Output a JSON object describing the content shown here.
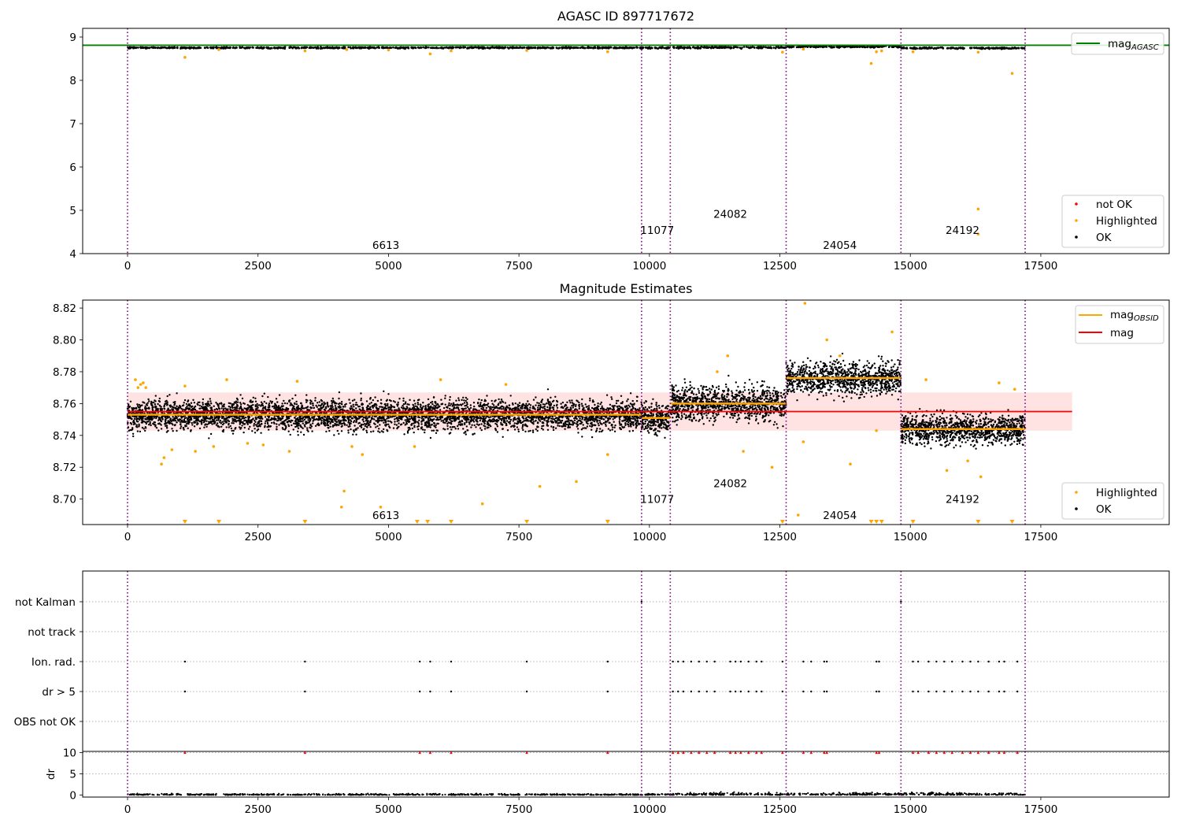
{
  "chart_data": [
    {
      "type": "scatter",
      "title": "AGASC ID 897717672",
      "xlabel": "",
      "ylabel": "",
      "xlim": [
        -860,
        19960
      ],
      "ylim": [
        4,
        9.2
      ],
      "x_ticks": [
        0,
        2500,
        5000,
        7500,
        10000,
        12500,
        15000,
        17500
      ],
      "x_tick_labels": [
        "0",
        "2500",
        "5000",
        "7500",
        "10000",
        "12500",
        "15000",
        "17500"
      ],
      "y_ticks": [
        4,
        5,
        6,
        7,
        8,
        9
      ],
      "y_tick_labels": [
        "4",
        "5",
        "6",
        "7",
        "8",
        "9"
      ],
      "hlines": [
        {
          "name": "mag_AGASC",
          "y": 8.81,
          "color": "#008000"
        }
      ],
      "obsid_boundaries": [
        0,
        9850,
        10400,
        12620,
        14820,
        17200
      ],
      "annotations": [
        {
          "text": "6613",
          "x": 4950,
          "y": 4.2
        },
        {
          "text": "11077",
          "x": 10150,
          "y": 4.55
        },
        {
          "text": "24082",
          "x": 11550,
          "y": 4.92
        },
        {
          "text": "24054",
          "x": 13650,
          "y": 4.2
        },
        {
          "text": "24192",
          "x": 16000,
          "y": 4.55
        }
      ],
      "segments": [
        {
          "x0": 0,
          "x1": 9850,
          "center": 8.753,
          "spread": 0.012
        },
        {
          "x0": 9850,
          "x1": 10400,
          "center": 8.751,
          "spread": 0.012
        },
        {
          "x0": 10400,
          "x1": 12620,
          "center": 8.76,
          "spread": 0.014
        },
        {
          "x0": 12620,
          "x1": 14820,
          "center": 8.776,
          "spread": 0.013
        },
        {
          "x0": 14820,
          "x1": 17200,
          "center": 8.744,
          "spread": 0.012
        }
      ],
      "highlighted": [
        [
          1100,
          8.53
        ],
        [
          1750,
          8.71
        ],
        [
          3400,
          8.68
        ],
        [
          4200,
          8.71
        ],
        [
          5000,
          8.7
        ],
        [
          5800,
          8.61
        ],
        [
          6200,
          8.68
        ],
        [
          7650,
          8.69
        ],
        [
          9200,
          8.66
        ],
        [
          12550,
          8.65
        ],
        [
          12950,
          8.72
        ],
        [
          14250,
          8.39
        ],
        [
          14350,
          8.66
        ],
        [
          14450,
          8.68
        ],
        [
          15050,
          8.66
        ],
        [
          16300,
          8.65
        ],
        [
          16300,
          5.03
        ],
        [
          16300,
          4.45
        ],
        [
          16950,
          8.16
        ]
      ],
      "legend": {
        "position": "lower right",
        "entries": [
          {
            "label": "not OK",
            "color": "#ff0000"
          },
          {
            "label": "Highlighted",
            "color": "#ffa500"
          },
          {
            "label": "OK",
            "color": "#000000"
          }
        ]
      },
      "legend_top": {
        "position": "upper right",
        "entries": [
          {
            "label": "mag",
            "sub": "AGASC",
            "color": "#008000"
          }
        ]
      }
    },
    {
      "type": "scatter",
      "title": "Magnitude Estimates",
      "xlabel": "",
      "ylabel": "",
      "xlim": [
        -860,
        19960
      ],
      "ylim": [
        8.684,
        8.825
      ],
      "x_ticks": [
        0,
        2500,
        5000,
        7500,
        10000,
        12500,
        15000,
        17500
      ],
      "x_tick_labels": [
        "0",
        "2500",
        "5000",
        "7500",
        "10000",
        "12500",
        "15000",
        "17500"
      ],
      "y_ticks": [
        8.7,
        8.72,
        8.74,
        8.76,
        8.78,
        8.8,
        8.82
      ],
      "y_tick_labels": [
        "8.70",
        "8.72",
        "8.74",
        "8.76",
        "8.78",
        "8.80",
        "8.82"
      ],
      "mag": {
        "value": 8.755,
        "band": [
          8.743,
          8.767
        ],
        "x_range": [
          0,
          18100
        ],
        "color": "#ff0000"
      },
      "mag_obsid": [
        {
          "x0": 0,
          "x1": 9850,
          "y": 8.753
        },
        {
          "x0": 9850,
          "x1": 10400,
          "y": 8.751
        },
        {
          "x0": 10400,
          "x1": 12620,
          "y": 8.76
        },
        {
          "x0": 12620,
          "x1": 14820,
          "y": 8.776
        },
        {
          "x0": 14820,
          "x1": 17200,
          "y": 8.744
        }
      ],
      "obsid_boundaries": [
        0,
        9850,
        10400,
        12620,
        14820,
        17200
      ],
      "annotations": [
        {
          "text": "6613",
          "x": 4950,
          "y": 8.69
        },
        {
          "text": "11077",
          "x": 10150,
          "y": 8.7
        },
        {
          "text": "24082",
          "x": 11550,
          "y": 8.71
        },
        {
          "text": "24054",
          "x": 13650,
          "y": 8.69
        },
        {
          "text": "24192",
          "x": 16000,
          "y": 8.7
        }
      ],
      "highlighted": [
        [
          150,
          8.775
        ],
        [
          200,
          8.77
        ],
        [
          250,
          8.772
        ],
        [
          300,
          8.773
        ],
        [
          350,
          8.77
        ],
        [
          650,
          8.722
        ],
        [
          700,
          8.726
        ],
        [
          850,
          8.731
        ],
        [
          1100,
          8.771
        ],
        [
          1300,
          8.73
        ],
        [
          1650,
          8.733
        ],
        [
          1900,
          8.775
        ],
        [
          2300,
          8.735
        ],
        [
          2600,
          8.734
        ],
        [
          3100,
          8.73
        ],
        [
          3250,
          8.774
        ],
        [
          4100,
          8.695
        ],
        [
          4150,
          8.705
        ],
        [
          4300,
          8.733
        ],
        [
          4500,
          8.728
        ],
        [
          4850,
          8.695
        ],
        [
          5500,
          8.733
        ],
        [
          6000,
          8.775
        ],
        [
          6800,
          8.697
        ],
        [
          7250,
          8.772
        ],
        [
          7900,
          8.708
        ],
        [
          8600,
          8.711
        ],
        [
          9200,
          8.728
        ],
        [
          11300,
          8.78
        ],
        [
          11500,
          8.79
        ],
        [
          11800,
          8.73
        ],
        [
          12350,
          8.72
        ],
        [
          12850,
          8.69
        ],
        [
          12950,
          8.736
        ],
        [
          12980,
          8.823
        ],
        [
          13400,
          8.8
        ],
        [
          13650,
          8.79
        ],
        [
          13850,
          8.722
        ],
        [
          14350,
          8.743
        ],
        [
          14650,
          8.805
        ],
        [
          15300,
          8.775
        ],
        [
          15700,
          8.718
        ],
        [
          16100,
          8.724
        ],
        [
          16350,
          8.714
        ],
        [
          16700,
          8.773
        ],
        [
          17000,
          8.769
        ]
      ],
      "out_of_range_markers": [
        1100,
        1750,
        3400,
        5550,
        5750,
        6200,
        7650,
        9200,
        12550,
        14250,
        14350,
        14450,
        15050,
        16300,
        16950
      ],
      "legend": {
        "position": "lower right",
        "entries": [
          {
            "label": "Highlighted",
            "color": "#ffa500"
          },
          {
            "label": "OK",
            "color": "#000000"
          }
        ]
      },
      "legend_top": {
        "position": "upper right",
        "entries": [
          {
            "label": "mag",
            "sub": "OBSID",
            "color": "#ffa500"
          },
          {
            "label": "mag",
            "sub": "",
            "color": "#ff0000"
          }
        ]
      }
    },
    {
      "type": "scatter",
      "title": "",
      "xlabel": "",
      "ylabel": "",
      "xlim": [
        -860,
        19960
      ],
      "categories": [
        "not Kalman",
        "not track",
        "Ion. rad.",
        "dr > 5",
        "OBS not OK"
      ],
      "flag_x": [
        9850,
        14820,
        1100,
        3400,
        5600,
        5800,
        6200,
        7650,
        9200,
        10450,
        10550,
        10650,
        10800,
        10950,
        11100,
        11250,
        11550,
        11650,
        11750,
        11900,
        12050,
        12150,
        12550,
        12950,
        13100,
        13350,
        13400,
        14350,
        14400,
        15050,
        15150,
        15350,
        15500,
        15650,
        15800,
        16000,
        16150,
        16300,
        16500,
        16700,
        16800,
        17050
      ],
      "obsid_boundaries": [
        0,
        9850,
        10400,
        12620,
        14820,
        17200
      ]
    },
    {
      "type": "scatter",
      "title": "",
      "xlabel": "",
      "ylabel": "dr",
      "xlim": [
        -860,
        19960
      ],
      "ylim": [
        -0.5,
        10.3
      ],
      "x_ticks": [
        0,
        2500,
        5000,
        7500,
        10000,
        12500,
        15000,
        17500
      ],
      "x_tick_labels": [
        "0",
        "2500",
        "5000",
        "7500",
        "10000",
        "12500",
        "15000",
        "17500"
      ],
      "y_ticks": [
        0,
        5,
        10
      ],
      "y_tick_labels": [
        "0",
        "5",
        "10"
      ],
      "red_flags_at": 10,
      "obsid_boundaries": [
        0,
        9850,
        10400,
        12620,
        14820,
        17200
      ]
    }
  ]
}
